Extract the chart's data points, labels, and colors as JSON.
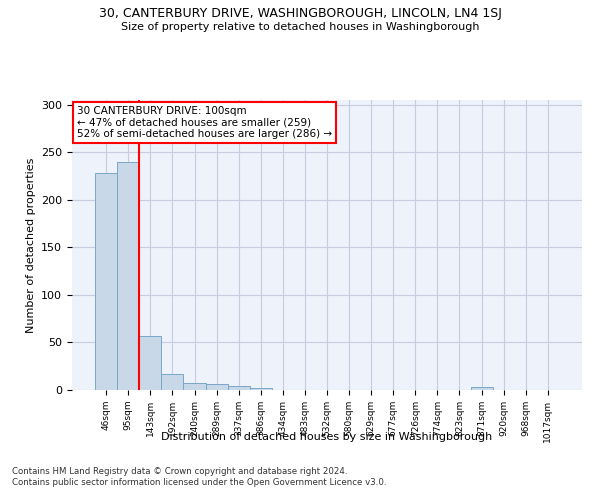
{
  "title_line1": "30, CANTERBURY DRIVE, WASHINGBOROUGH, LINCOLN, LN4 1SJ",
  "title_line2": "Size of property relative to detached houses in Washingborough",
  "xlabel": "Distribution of detached houses by size in Washingborough",
  "ylabel": "Number of detached properties",
  "bar_labels": [
    "46sqm",
    "95sqm",
    "143sqm",
    "192sqm",
    "240sqm",
    "289sqm",
    "337sqm",
    "386sqm",
    "434sqm",
    "483sqm",
    "532sqm",
    "580sqm",
    "629sqm",
    "677sqm",
    "726sqm",
    "774sqm",
    "823sqm",
    "871sqm",
    "920sqm",
    "968sqm",
    "1017sqm"
  ],
  "bar_values": [
    228,
    240,
    57,
    17,
    7,
    6,
    4,
    2,
    0,
    0,
    0,
    0,
    0,
    0,
    0,
    0,
    0,
    3,
    0,
    0,
    0
  ],
  "bar_color": "#c8d8e8",
  "bar_edge_color": "#7aa8c8",
  "grid_color": "#c8cce0",
  "bg_color": "#eef2fa",
  "annotation_text": "30 CANTERBURY DRIVE: 100sqm\n← 47% of detached houses are smaller (259)\n52% of semi-detached houses are larger (286) →",
  "annotation_box_color": "white",
  "annotation_box_edge": "red",
  "vline_x": 1.5,
  "vline_color": "red",
  "footnote": "Contains HM Land Registry data © Crown copyright and database right 2024.\nContains public sector information licensed under the Open Government Licence v3.0.",
  "ylim": [
    0,
    305
  ],
  "yticks": [
    0,
    50,
    100,
    150,
    200,
    250,
    300
  ]
}
